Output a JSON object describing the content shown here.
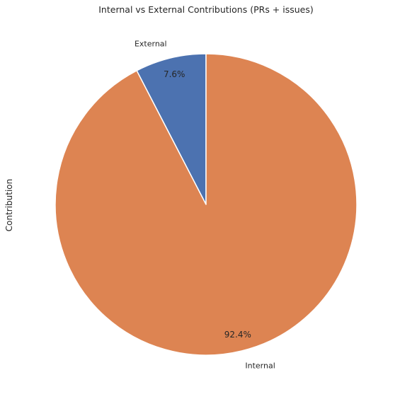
{
  "chart_data": {
    "type": "pie",
    "title": "Internal vs External Contributions (PRs + issues)",
    "ylabel": "Contribution",
    "start_angle_deg": 90,
    "direction": "counterclockwise",
    "slices": [
      {
        "label": "External",
        "value": 7.6,
        "pct_label": "7.6%",
        "color": "#4c72b0"
      },
      {
        "label": "Internal",
        "value": 92.4,
        "pct_label": "92.4%",
        "color": "#dd8452"
      }
    ],
    "edge_color": "#ffffff",
    "legend": "none",
    "grid": false
  }
}
